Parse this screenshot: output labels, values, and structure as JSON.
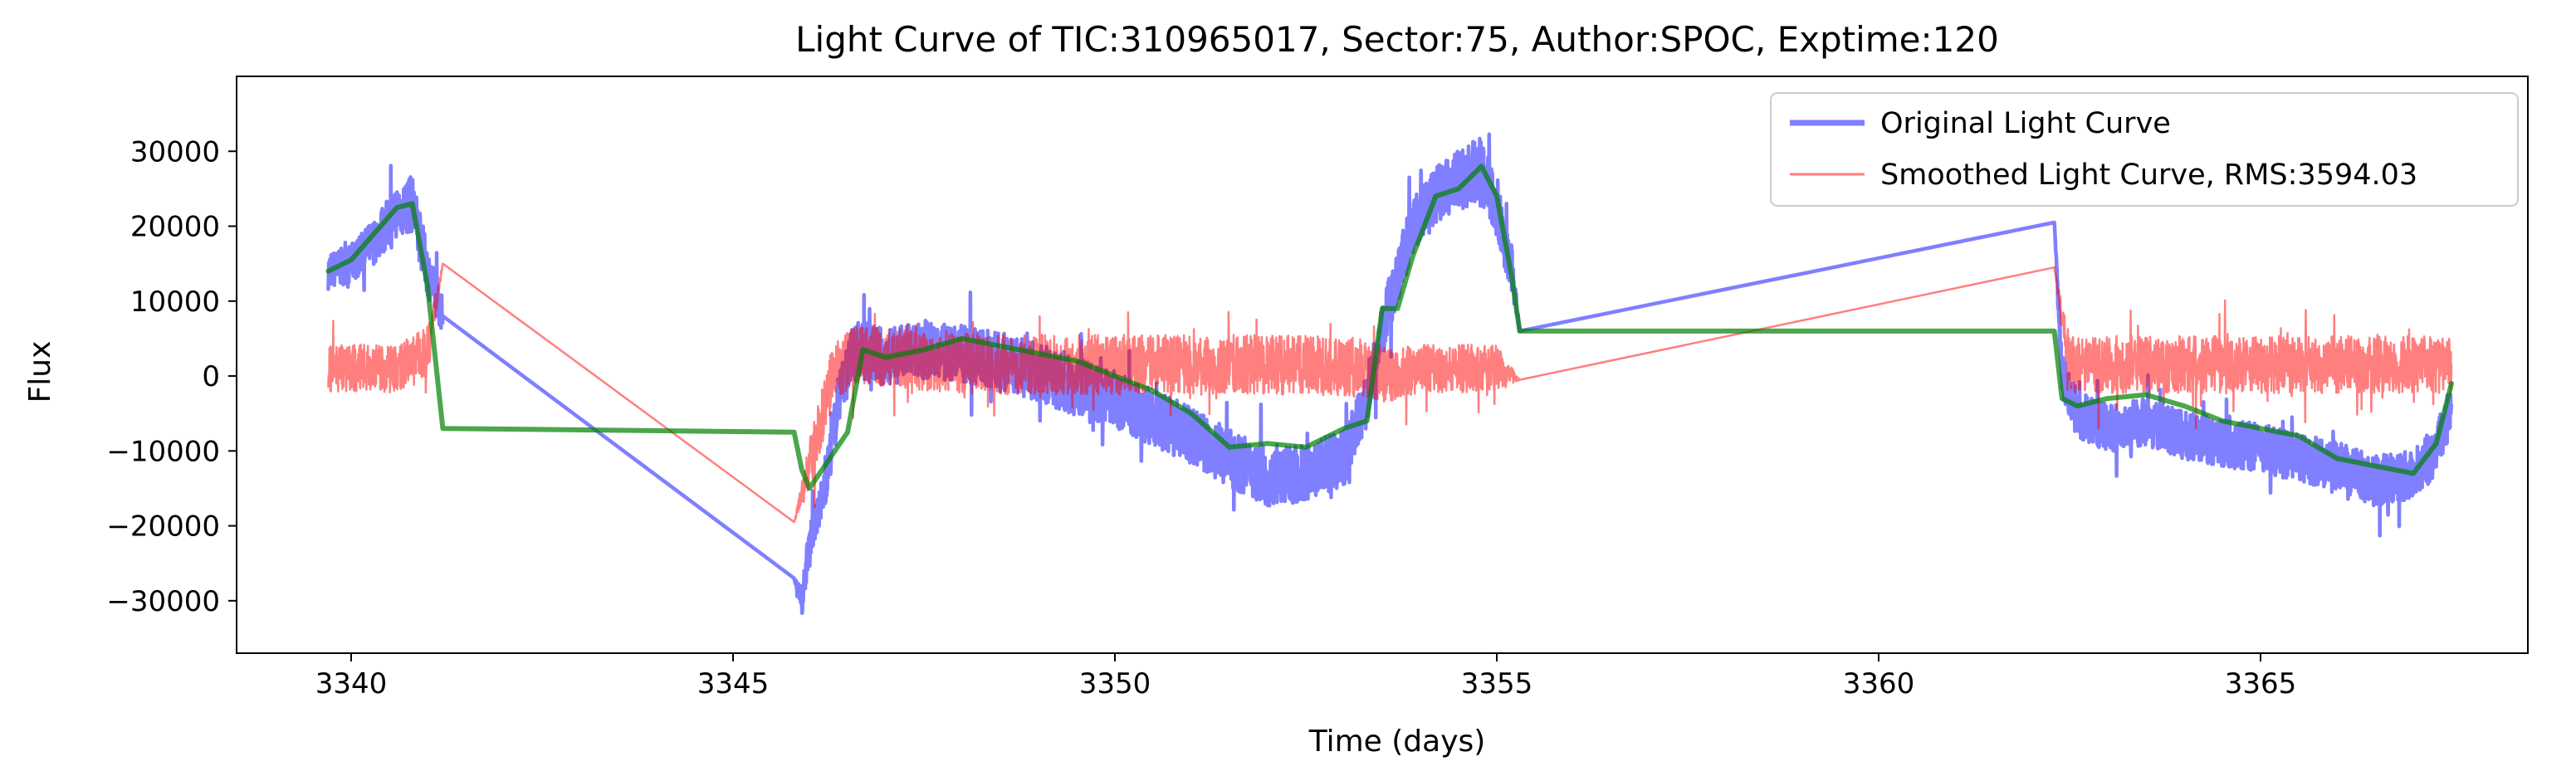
{
  "chart_data": {
    "type": "line",
    "title": "Light Curve of TIC:310965017, Sector:75, Author:SPOC, Exptime:120",
    "xlabel": "Time (days)",
    "ylabel": "Flux",
    "xlim": [
      3338.5,
      3368.5
    ],
    "ylim": [
      -37000,
      40000
    ],
    "xticks": [
      3340,
      3345,
      3350,
      3355,
      3360,
      3365
    ],
    "yticks": [
      -30000,
      -20000,
      -10000,
      0,
      10000,
      20000,
      30000
    ],
    "grid": false,
    "legend_position": "top-right",
    "series": [
      {
        "name": "Original Light Curve",
        "color": "#0000ff",
        "opacity": 0.5,
        "style": "noisy",
        "x": [
          3339.7,
          3340.0,
          3340.3,
          3340.6,
          3340.8,
          3341.0,
          3341.2,
          3345.8,
          3345.9,
          3346.0,
          3346.2,
          3346.4,
          3346.6,
          3347.0,
          3347.5,
          3348.0,
          3348.5,
          3349.0,
          3349.5,
          3350.0,
          3350.5,
          3351.0,
          3351.5,
          3352.0,
          3352.5,
          3353.0,
          3353.3,
          3353.6,
          3353.9,
          3354.2,
          3354.5,
          3354.8,
          3355.0,
          3355.2,
          3355.3,
          3362.3,
          3362.4,
          3362.6,
          3363.0,
          3363.5,
          3364.0,
          3364.5,
          3365.0,
          3365.5,
          3366.0,
          3366.5,
          3367.0,
          3367.3,
          3367.5
        ],
        "y": [
          14000,
          15000,
          18000,
          22000,
          23000,
          14000,
          8000,
          -27000,
          -30000,
          -22000,
          -15000,
          -2000,
          3500,
          2500,
          3500,
          3000,
          2000,
          500,
          -1500,
          -3000,
          -5500,
          -8000,
          -11000,
          -13500,
          -13000,
          -11000,
          -3000,
          10000,
          20000,
          24000,
          26000,
          28000,
          22000,
          14000,
          6000,
          20500,
          0,
          -5000,
          -7000,
          -6000,
          -8000,
          -9000,
          -9500,
          -11000,
          -12000,
          -14000,
          -13000,
          -10000,
          -4000
        ],
        "noise": [
          3000,
          3200,
          3800,
          4500,
          4800,
          4000,
          3000,
          0,
          2500,
          3000,
          3500,
          4500,
          5000,
          4800,
          4800,
          4800,
          4800,
          4800,
          4800,
          4800,
          4800,
          4800,
          4800,
          4800,
          4800,
          4800,
          4500,
          4500,
          4800,
          5000,
          5200,
          5200,
          5000,
          4000,
          0,
          0,
          3800,
          4000,
          4000,
          4000,
          4000,
          4000,
          4000,
          4000,
          4000,
          4200,
          4200,
          4200,
          4200
        ]
      },
      {
        "name": "Smoothed Light Curve, RMS:3594.03",
        "color": "#ff0000",
        "opacity": 0.5,
        "style": "noisy",
        "x": [
          3339.7,
          3340.2,
          3340.6,
          3341.0,
          3341.2,
          3345.8,
          3346.0,
          3346.3,
          3346.6,
          3347.5,
          3348.5,
          3349.5,
          3350.5,
          3351.5,
          3352.5,
          3353.3,
          3353.6,
          3354.0,
          3354.5,
          3355.0,
          3355.3,
          3362.3,
          3362.5,
          3363.5,
          3364.5,
          3365.5,
          3366.5,
          3367.5
        ],
        "y": [
          1000,
          1000,
          1000,
          3000,
          15000,
          -19500,
          -12000,
          0,
          3000,
          2000,
          1500,
          1500,
          1500,
          1500,
          1500,
          1000,
          0,
          1000,
          1000,
          1000,
          -500,
          14500,
          1500,
          1500,
          1500,
          1500,
          1500,
          1500
        ],
        "noise": [
          4000,
          4000,
          4000,
          4500,
          0,
          0,
          4500,
          5000,
          5000,
          5000,
          5000,
          5000,
          5000,
          5000,
          5000,
          5000,
          4500,
          4000,
          4000,
          4000,
          0,
          0,
          4800,
          4800,
          4800,
          4800,
          4800,
          4800
        ]
      },
      {
        "name": "",
        "color": "#008000",
        "opacity": 0.7,
        "style": "smooth",
        "x": [
          3339.7,
          3340.0,
          3340.3,
          3340.6,
          3340.8,
          3341.0,
          3341.2,
          3345.8,
          3345.9,
          3346.0,
          3346.2,
          3346.5,
          3346.7,
          3347.0,
          3347.5,
          3348.0,
          3348.5,
          3349.0,
          3349.5,
          3350.0,
          3350.5,
          3351.0,
          3351.5,
          3352.0,
          3352.5,
          3353.0,
          3353.3,
          3353.5,
          3353.7,
          3353.9,
          3354.2,
          3354.5,
          3354.8,
          3355.0,
          3355.2,
          3355.3,
          3362.3,
          3362.4,
          3362.6,
          3363.0,
          3363.5,
          3364.0,
          3364.5,
          3365.0,
          3365.5,
          3366.0,
          3366.5,
          3367.0,
          3367.3,
          3367.5
        ],
        "y": [
          14000,
          15500,
          19000,
          22500,
          23000,
          12000,
          -7000,
          -7500,
          -12500,
          -15000,
          -12000,
          -7500,
          3500,
          2500,
          3500,
          5000,
          4000,
          3000,
          2000,
          0,
          -2000,
          -5000,
          -9500,
          -9000,
          -9500,
          -7000,
          -6000,
          9000,
          9000,
          16000,
          24000,
          25000,
          28000,
          24000,
          13000,
          6000,
          6000,
          -3000,
          -4000,
          -3000,
          -2500,
          -4000,
          -6000,
          -7000,
          -8000,
          -11000,
          -12000,
          -13000,
          -9000,
          -1000
        ]
      }
    ]
  }
}
